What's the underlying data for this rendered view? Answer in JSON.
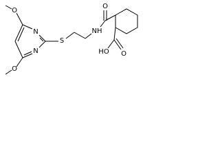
{
  "atoms": [
    "O",
    "N",
    "N",
    "O",
    "S",
    "NH",
    "O",
    "HO",
    "O"
  ]
}
